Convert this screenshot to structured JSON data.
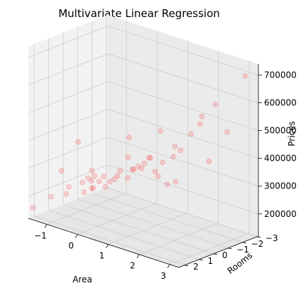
{
  "chart_data": {
    "type": "scatter",
    "projection": "3d",
    "title": "Multivariate Linear Regression",
    "xlabel": "Area",
    "ylabel": "Rooms",
    "zlabel": "Prices",
    "xlim": [
      -1.6,
      3.3
    ],
    "ylim": [
      -3.1,
      2.4
    ],
    "zlim": [
      120000,
      740000
    ],
    "xticks": [
      -1,
      0,
      1,
      2,
      3
    ],
    "yticks": [
      -3,
      -2,
      -1,
      0,
      1,
      2
    ],
    "zticks": [
      200000,
      300000,
      400000,
      500000,
      600000,
      700000
    ],
    "grid": true,
    "colors": {
      "marker": "#ff0000",
      "pane_x": "#f2f2f2",
      "pane_y": "#ebebeb",
      "pane_z": "#e6e6e6",
      "grid": "#cccccc"
    },
    "points": [
      {
        "x": -1.5,
        "y": 2.3,
        "z": 160000
      },
      {
        "x": -1.05,
        "y": 2.0,
        "z": 210000
      },
      {
        "x": -0.8,
        "y": 1.3,
        "z": 240000
      },
      {
        "x": -0.65,
        "y": 1.8,
        "z": 230000
      },
      {
        "x": -0.5,
        "y": 1.0,
        "z": 260000
      },
      {
        "x": -0.35,
        "y": 1.2,
        "z": 235000
      },
      {
        "x": -0.3,
        "y": 0.8,
        "z": 270000
      },
      {
        "x": -0.2,
        "y": 1.0,
        "z": 250000
      },
      {
        "x": -0.15,
        "y": 0.9,
        "z": 295000
      },
      {
        "x": -0.05,
        "y": 1.2,
        "z": 260000
      },
      {
        "x": 0.0,
        "y": 0.9,
        "z": 280000
      },
      {
        "x": 0.1,
        "y": 0.8,
        "z": 300000
      },
      {
        "x": 0.1,
        "y": 0.7,
        "z": 260000
      },
      {
        "x": 0.2,
        "y": 0.6,
        "z": 280000
      },
      {
        "x": 0.3,
        "y": 0.5,
        "z": 290000
      },
      {
        "x": 0.4,
        "y": 0.3,
        "z": 320000
      },
      {
        "x": 0.45,
        "y": 0.6,
        "z": 310000
      },
      {
        "x": 0.6,
        "y": 0.2,
        "z": 300000
      },
      {
        "x": 0.7,
        "y": 0.0,
        "z": 330000
      },
      {
        "x": 0.8,
        "y": 0.3,
        "z": 340000
      },
      {
        "x": 0.9,
        "y": 0.1,
        "z": 350000
      },
      {
        "x": 1.0,
        "y": -0.1,
        "z": 360000
      },
      {
        "x": 1.05,
        "y": 0.2,
        "z": 350000
      },
      {
        "x": 1.1,
        "y": -0.3,
        "z": 380000
      },
      {
        "x": 1.2,
        "y": 0.0,
        "z": 390000
      },
      {
        "x": 1.3,
        "y": -0.2,
        "z": 340000
      },
      {
        "x": 1.4,
        "y": -0.5,
        "z": 370000
      },
      {
        "x": 1.45,
        "y": -0.1,
        "z": 330000
      },
      {
        "x": 1.6,
        "y": -0.4,
        "z": 300000
      },
      {
        "x": 1.7,
        "y": -0.6,
        "z": 400000
      },
      {
        "x": 1.8,
        "y": -0.9,
        "z": 420000
      },
      {
        "x": 1.9,
        "y": -0.3,
        "z": 450000
      },
      {
        "x": 2.0,
        "y": -1.2,
        "z": 480000
      },
      {
        "x": 2.2,
        "y": -1.4,
        "z": 520000
      },
      {
        "x": 2.4,
        "y": -1.1,
        "z": 560000
      },
      {
        "x": 2.6,
        "y": -1.6,
        "z": 600000
      },
      {
        "x": 2.8,
        "y": -2.0,
        "z": 500000
      },
      {
        "x": 3.1,
        "y": -2.6,
        "z": 700000
      },
      {
        "x": -0.4,
        "y": 1.5,
        "z": 420000
      },
      {
        "x": 0.55,
        "y": 0.0,
        "z": 440000
      },
      {
        "x": 2.3,
        "y": -1.8,
        "z": 380000
      },
      {
        "x": -0.9,
        "y": 1.6,
        "z": 300000
      },
      {
        "x": 0.0,
        "y": 1.4,
        "z": 330000
      },
      {
        "x": 1.2,
        "y": -0.8,
        "z": 470000
      },
      {
        "x": 0.8,
        "y": 0.6,
        "z": 390000
      },
      {
        "x": 1.5,
        "y": -1.2,
        "z": 290000
      },
      {
        "x": -0.6,
        "y": 0.4,
        "z": 260000
      }
    ]
  }
}
